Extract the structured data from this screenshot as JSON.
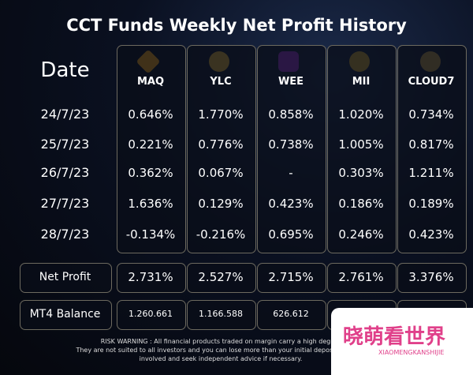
{
  "title": "CCT Funds Weekly Net Profit History",
  "table": {
    "header": [
      "Date",
      "MAQ",
      "YLC",
      "WEE",
      "MII",
      "CLOUD7"
    ],
    "rows": [
      [
        "24/7/23",
        "0.646%",
        "1.770%",
        "0.858%",
        "1.020%",
        "0.734%"
      ],
      [
        "25/7/23",
        "0.221%",
        "0.776%",
        "0.738%",
        "1.005%",
        "0.817%"
      ],
      [
        "26/7/23",
        "0.362%",
        "0.067%",
        "-",
        "0.303%",
        "1.211%"
      ],
      [
        "27/7/23",
        "1.636%",
        "0.129%",
        "0.423%",
        "0.186%",
        "0.189%"
      ],
      [
        "28/7/23",
        "-0.134%",
        "-0.216%",
        "0.695%",
        "0.246%",
        "0.423%"
      ]
    ],
    "net_profit": [
      "Net Profit",
      "2.731%",
      "2.527%",
      "2.715%",
      "2.761%",
      "3.376%"
    ],
    "mt4_balance": [
      "MT4 Balance",
      "1.260.661",
      "1.166.588",
      "626.612"
    ]
  },
  "risk_warning": [
    "RISK WARNING : All financial products traded on margin carry a high degree",
    "They are not suited to all investors and you can lose more than your initial deposit Please e",
    "involved and seek independent advice if necessary."
  ],
  "watermark": {
    "title": "晓萌看世界",
    "subtitle": "XIAOMENGKANSHIJIE"
  }
}
